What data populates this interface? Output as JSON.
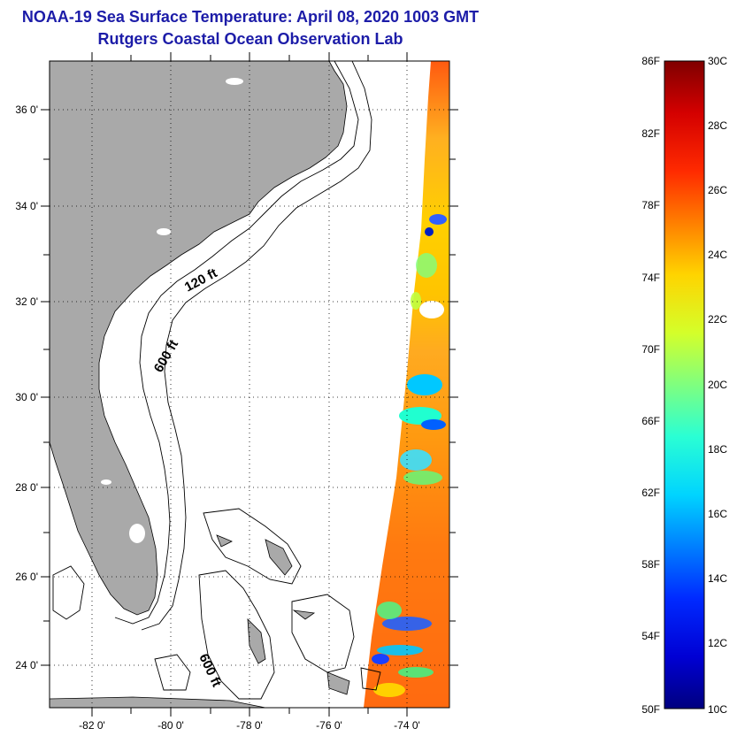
{
  "title": "NOAA-19 Sea Surface Temperature:  April 08, 2020 1003 GMT",
  "subtitle": "Rutgers Coastal Ocean Observation Lab",
  "lat_labels": [
    "36 0'",
    "34 0'",
    "32 0'",
    "30 0'",
    "28 0'",
    "26 0'",
    "24 0'"
  ],
  "lon_labels": [
    "-82 0'",
    "-80 0'",
    "-78 0'",
    "-76 0'",
    "-74 0'"
  ],
  "contour_labels": [
    "120 ft",
    "600 ft",
    "600 ft"
  ],
  "colorbar": {
    "f_labels": [
      "86F",
      "82F",
      "78F",
      "74F",
      "70F",
      "66F",
      "62F",
      "58F",
      "54F",
      "50F"
    ],
    "c_labels": [
      "30C",
      "28C",
      "26C",
      "24C",
      "22C",
      "20C",
      "18C",
      "16C",
      "14C",
      "12C",
      "10C"
    ],
    "colors": [
      "#7f0000",
      "#d40000",
      "#ff2a00",
      "#ff7f00",
      "#ffd400",
      "#d4ff2a",
      "#7fff7f",
      "#2affd4",
      "#00d4ff",
      "#007fff",
      "#002aff",
      "#0000d4",
      "#00007f"
    ]
  },
  "colors": {
    "land": "#a9a9a9",
    "title": "#1c1ca8",
    "sst_warm": "#ff7a1a",
    "sst_cool": "#00c0ff"
  }
}
